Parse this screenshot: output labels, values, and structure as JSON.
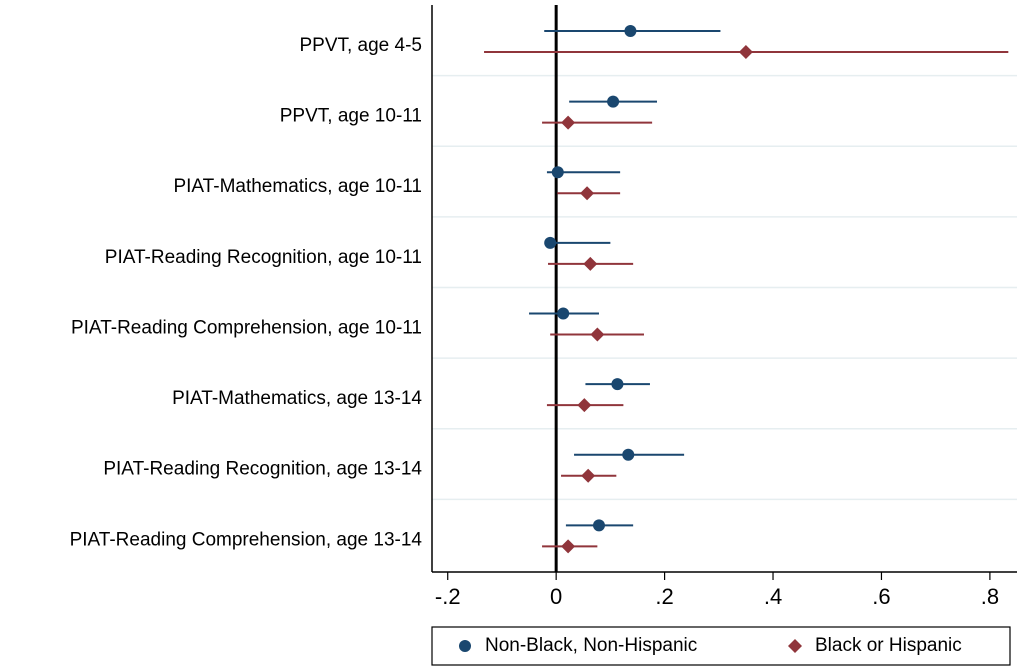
{
  "chart_data": {
    "type": "coefplot",
    "categories": [
      "PPVT, age 4-5",
      "PPVT, age 10-11",
      "PIAT-Mathematics, age 10-11",
      "PIAT-Reading Recognition, age 10-11",
      "PIAT-Reading Comprehension, age 10-11",
      "PIAT-Mathematics, age 13-14",
      "PIAT-Reading Recognition, age 13-14",
      "PIAT-Reading Comprehension, age 13-14"
    ],
    "series": [
      {
        "name": "Non-Black, Non-Hispanic",
        "color": "#1a476f",
        "marker": "circle",
        "values": [
          0.137,
          0.105,
          0.003,
          -0.011,
          0.013,
          0.113,
          0.133,
          0.079
        ],
        "lower": [
          -0.022,
          0.024,
          -0.017,
          -0.017,
          -0.05,
          0.054,
          0.033,
          0.018
        ],
        "upper": [
          0.303,
          0.186,
          0.118,
          0.1,
          0.079,
          0.173,
          0.236,
          0.142
        ]
      },
      {
        "name": "Black or Hispanic",
        "color": "#90353b",
        "marker": "diamond",
        "values": [
          0.35,
          0.022,
          0.057,
          0.063,
          0.076,
          0.052,
          0.059,
          0.022
        ],
        "lower": [
          -0.133,
          -0.026,
          0.002,
          -0.015,
          -0.011,
          -0.017,
          0.009,
          -0.026
        ],
        "upper": [
          0.834,
          0.177,
          0.118,
          0.142,
          0.162,
          0.124,
          0.111,
          0.076
        ]
      }
    ],
    "xlim": [
      -0.229,
      0.85
    ],
    "xticks": [
      {
        "value": -0.2,
        "label": "-.2"
      },
      0,
      {
        "value": 0.2,
        "label": ".2"
      },
      {
        "value": 0.4,
        "label": ".4"
      },
      {
        "value": 0.6,
        "label": ".6"
      },
      {
        "value": 0.8,
        "label": ".8"
      }
    ],
    "reference_line": 0,
    "legend": "bottom"
  }
}
